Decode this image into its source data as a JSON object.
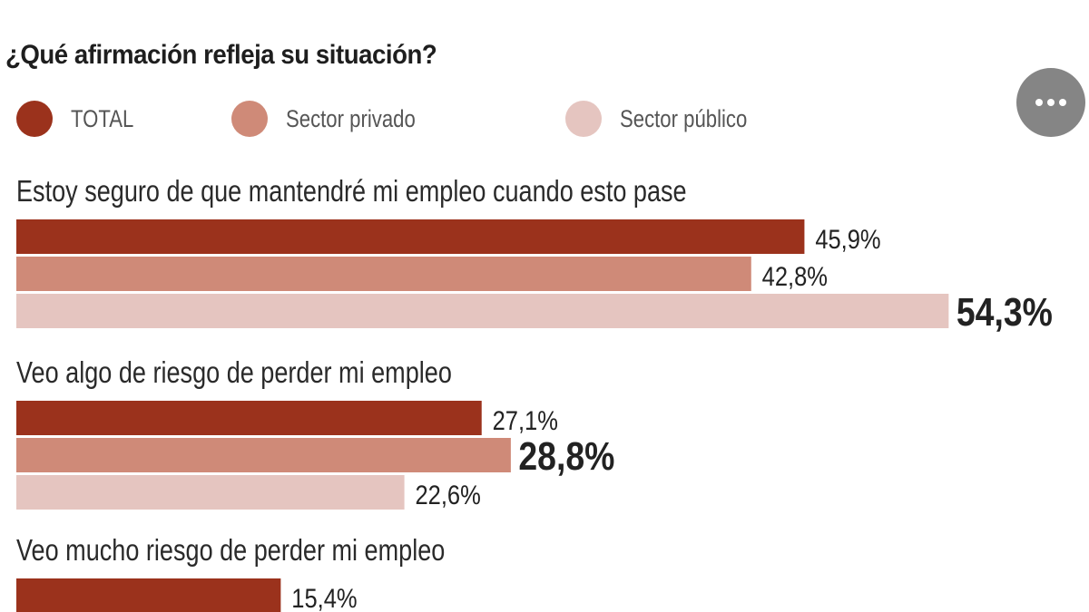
{
  "header": {
    "title": "¿Qué afirmación refleja su situación?",
    "more_button_icon": "ellipsis-icon"
  },
  "legend": [
    {
      "label": "TOTAL",
      "color": "#9b321c"
    },
    {
      "label": "Sector privado",
      "color": "#cf8a78"
    },
    {
      "label": "Sector público",
      "color": "#e5c5c0"
    }
  ],
  "chart_data": {
    "type": "bar",
    "orientation": "horizontal",
    "title": "¿Qué afirmación refleja su situación?",
    "xlabel": "",
    "ylabel": "",
    "unit": "%",
    "grid": false,
    "legend_position": "top",
    "categories": [
      "Estoy seguro de que mantendré mi empleo cuando esto pase",
      "Veo algo de riesgo de perder mi empleo",
      "Veo mucho riesgo de perder mi empleo"
    ],
    "series": [
      {
        "name": "TOTAL",
        "color": "#9b321c",
        "values": [
          45.9,
          27.1,
          15.4
        ],
        "labels": [
          "45,9%",
          "27,1%",
          "15,4%"
        ]
      },
      {
        "name": "Sector privado",
        "color": "#cf8a78",
        "values": [
          42.8,
          28.8,
          null
        ],
        "labels": [
          "42,8%",
          "28,8%",
          ""
        ]
      },
      {
        "name": "Sector público",
        "color": "#e5c5c0",
        "values": [
          54.3,
          22.6,
          null
        ],
        "labels": [
          "54,3%",
          "22,6%",
          ""
        ]
      }
    ],
    "highlighted": [
      {
        "category_index": 0,
        "series_index": 2
      },
      {
        "category_index": 1,
        "series_index": 1
      }
    ]
  }
}
